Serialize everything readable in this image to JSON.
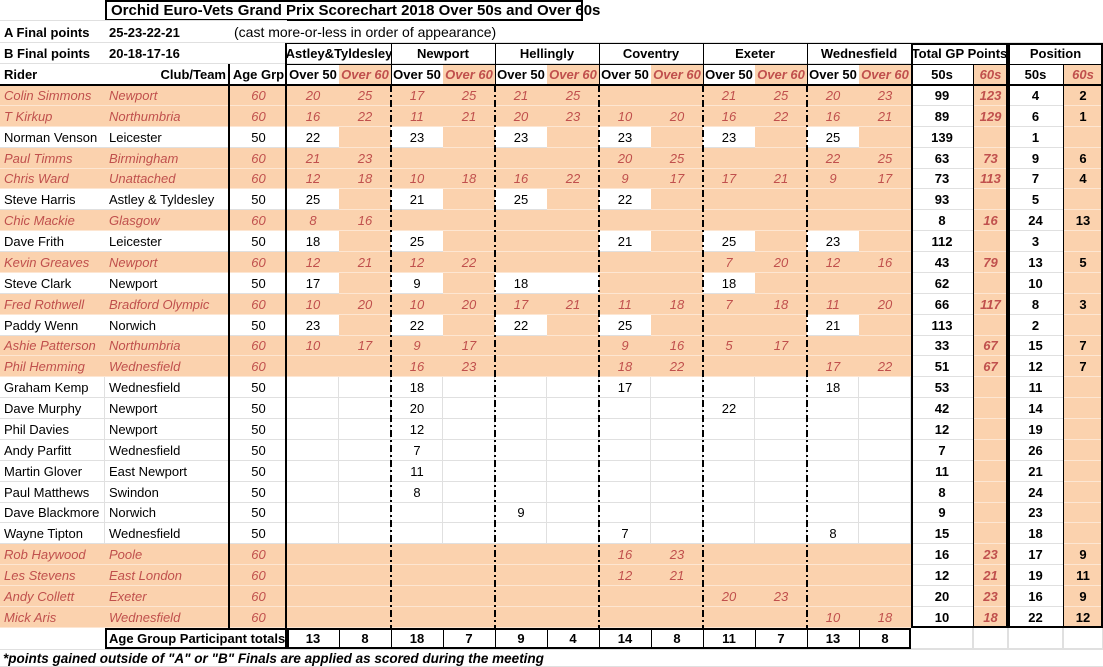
{
  "title": "Orchid Euro-Vets Grand Prix Scorechart 2018 Over 50s and Over 60s",
  "header": {
    "a_final_label": "A Final points",
    "a_final_points": "25-23-22-21",
    "b_final_label": "B Final points",
    "b_final_points": "20-18-17-16",
    "cast_note": "(cast more-or-less in order of appearance)",
    "rider_label": "Rider",
    "club_label": "Club/Team",
    "age_label": "Age Grp",
    "over50_label": "Over 50",
    "over60_label": "Over 60",
    "venues": [
      "Astley&Tyldesley",
      "Newport",
      "Hellingly",
      "Coventry",
      "Exeter",
      "Wednesfield"
    ],
    "total_label": "Total GP Points",
    "position_label": "Position",
    "sub50_label": "50s",
    "sub60_label": "60s"
  },
  "riders": [
    {
      "name": "Colin Simmons",
      "club": "Newport",
      "age": "60",
      "scores": [
        "20",
        "25",
        "17",
        "25",
        "21",
        "25",
        "",
        "",
        "21",
        "25",
        "20",
        "23"
      ],
      "total50": "99",
      "total60": "123",
      "pos50": "4",
      "pos60": "2"
    },
    {
      "name": "T Kirkup",
      "club": "Northumbria",
      "age": "60",
      "scores": [
        "16",
        "22",
        "11",
        "21",
        "20",
        "23",
        "10",
        "20",
        "16",
        "22",
        "16",
        "21"
      ],
      "total50": "89",
      "total60": "129",
      "pos50": "6",
      "pos60": "1"
    },
    {
      "name": "Norman Venson",
      "club": "Leicester",
      "age": "50",
      "scores": [
        "22",
        "",
        "23",
        "",
        "23",
        "",
        "23",
        "",
        "23",
        "",
        "25",
        ""
      ],
      "total50": "139",
      "total60": "",
      "pos50": "1",
      "pos60": ""
    },
    {
      "name": "Paul Timms",
      "club": "Birmingham",
      "age": "60",
      "scores": [
        "21",
        "23",
        "",
        "",
        "",
        "",
        "20",
        "25",
        "",
        "",
        "22",
        "25"
      ],
      "total50": "63",
      "total60": "73",
      "pos50": "9",
      "pos60": "6"
    },
    {
      "name": "Chris Ward",
      "club": "Unattached",
      "age": "60",
      "scores": [
        "12",
        "18",
        "10",
        "18",
        "16",
        "22",
        "9",
        "17",
        "17",
        "21",
        "9",
        "17"
      ],
      "total50": "73",
      "total60": "113",
      "pos50": "7",
      "pos60": "4"
    },
    {
      "name": "Steve Harris",
      "club": "Astley & Tyldesley",
      "age": "50",
      "scores": [
        "25",
        "",
        "21",
        "",
        "25",
        "",
        "22",
        "",
        "",
        "",
        "",
        ""
      ],
      "total50": "93",
      "total60": "",
      "pos50": "5",
      "pos60": ""
    },
    {
      "name": "Chic Mackie",
      "club": "Glasgow",
      "age": "60",
      "scores": [
        "8",
        "16",
        "",
        "",
        "",
        "",
        "",
        "",
        "",
        "",
        "",
        ""
      ],
      "total50": "8",
      "total60": "16",
      "pos50": "24",
      "pos60": "13"
    },
    {
      "name": "Dave Frith",
      "club": "Leicester",
      "age": "50",
      "scores": [
        "18",
        "",
        "25",
        "",
        "",
        "",
        "21",
        "",
        "25",
        "",
        "23",
        ""
      ],
      "total50": "112",
      "total60": "",
      "pos50": "3",
      "pos60": ""
    },
    {
      "name": "Kevin Greaves",
      "club": "Newport",
      "age": "60",
      "scores": [
        "12",
        "21",
        "12",
        "22",
        "",
        "",
        "",
        "",
        "7",
        "20",
        "12",
        "16"
      ],
      "total50": "43",
      "total60": "79",
      "pos50": "13",
      "pos60": "5"
    },
    {
      "name": "Steve Clark",
      "club": "Newport",
      "age": "50",
      "scores": [
        "17",
        "",
        "9",
        "",
        "18",
        "",
        "",
        "",
        "18",
        "",
        "",
        ""
      ],
      "total50": "62",
      "total60": "",
      "pos50": "10",
      "pos60": "",
      "extra_white": [
        5
      ]
    },
    {
      "name": "Fred Rothwell",
      "club": "Bradford Olympic",
      "age": "60",
      "scores": [
        "10",
        "20",
        "10",
        "20",
        "17",
        "21",
        "11",
        "18",
        "7",
        "18",
        "11",
        "20"
      ],
      "total50": "66",
      "total60": "117",
      "pos50": "8",
      "pos60": "3"
    },
    {
      "name": "Paddy Wenn",
      "club": "Norwich",
      "age": "50",
      "scores": [
        "23",
        "",
        "22",
        "",
        "22",
        "",
        "25",
        "",
        "",
        "",
        "21",
        ""
      ],
      "total50": "113",
      "total60": "",
      "pos50": "2",
      "pos60": ""
    },
    {
      "name": "Ashie Patterson",
      "club": "Northumbria",
      "age": "60",
      "scores": [
        "10",
        "17",
        "9",
        "17",
        "",
        "",
        "9",
        "16",
        "5",
        "17",
        "",
        ""
      ],
      "total50": "33",
      "total60": "67",
      "pos50": "15",
      "pos60": "7"
    },
    {
      "name": "Phil Hemming",
      "club": "Wednesfield",
      "age": "60",
      "scores": [
        "",
        "",
        "16",
        "23",
        "",
        "",
        "18",
        "22",
        "",
        "",
        "17",
        "22"
      ],
      "total50": "51",
      "total60": "67",
      "pos50": "12",
      "pos60": "7"
    },
    {
      "name": "Graham Kemp",
      "club": "Wednesfield",
      "age": "50",
      "white_block": true,
      "scores": [
        "",
        "",
        "18",
        "",
        "",
        "",
        "17",
        "",
        "",
        "",
        "18",
        ""
      ],
      "total50": "53",
      "total60": "",
      "pos50": "11",
      "pos60": ""
    },
    {
      "name": "Dave Murphy",
      "club": "Newport",
      "age": "50",
      "white_block": true,
      "scores": [
        "",
        "",
        "20",
        "",
        "",
        "",
        "",
        "",
        "22",
        "",
        "",
        ""
      ],
      "total50": "42",
      "total60": "",
      "pos50": "14",
      "pos60": ""
    },
    {
      "name": "Phil Davies",
      "club": "Newport",
      "age": "50",
      "white_block": true,
      "scores": [
        "",
        "",
        "12",
        "",
        "",
        "",
        "",
        "",
        "",
        "",
        "",
        ""
      ],
      "total50": "12",
      "total60": "",
      "pos50": "19",
      "pos60": ""
    },
    {
      "name": "Andy Parfitt",
      "club": "Wednesfield",
      "age": "50",
      "white_block": true,
      "scores": [
        "",
        "",
        "7",
        "",
        "",
        "",
        "",
        "",
        "",
        "",
        "",
        ""
      ],
      "total50": "7",
      "total60": "",
      "pos50": "26",
      "pos60": ""
    },
    {
      "name": "Martin Glover",
      "club": "East Newport",
      "age": "50",
      "white_block": true,
      "scores": [
        "",
        "",
        "11",
        "",
        "",
        "",
        "",
        "",
        "",
        "",
        "",
        ""
      ],
      "total50": "11",
      "total60": "",
      "pos50": "21",
      "pos60": ""
    },
    {
      "name": "Paul Matthews",
      "club": "Swindon",
      "age": "50",
      "white_block": true,
      "scores": [
        "",
        "",
        "8",
        "",
        "",
        "",
        "",
        "",
        "",
        "",
        "",
        ""
      ],
      "total50": "8",
      "total60": "",
      "pos50": "24",
      "pos60": ""
    },
    {
      "name": "Dave Blackmore",
      "club": "Norwich",
      "age": "50",
      "white_block": true,
      "scores": [
        "",
        "",
        "",
        "",
        "9",
        "",
        "",
        "",
        "",
        "",
        "",
        ""
      ],
      "total50": "9",
      "total60": "",
      "pos50": "23",
      "pos60": ""
    },
    {
      "name": "Wayne Tipton",
      "club": "Wednesfield",
      "age": "50",
      "white_block": true,
      "scores": [
        "",
        "",
        "",
        "",
        "",
        "",
        "7",
        "",
        "",
        "",
        "8",
        ""
      ],
      "total50": "15",
      "total60": "",
      "pos50": "18",
      "pos60": ""
    },
    {
      "name": "Rob Haywood",
      "club": "Poole",
      "age": "60",
      "scores": [
        "",
        "",
        "",
        "",
        "",
        "",
        "16",
        "23",
        "",
        "",
        "",
        ""
      ],
      "total50": "16",
      "total60": "23",
      "pos50": "17",
      "pos60": "9"
    },
    {
      "name": "Les Stevens",
      "club": "East London",
      "age": "60",
      "scores": [
        "",
        "",
        "",
        "",
        "",
        "",
        "12",
        "21",
        "",
        "",
        "",
        ""
      ],
      "total50": "12",
      "total60": "21",
      "pos50": "19",
      "pos60": "11"
    },
    {
      "name": "Andy Collett",
      "club": "Exeter",
      "age": "60",
      "scores": [
        "",
        "",
        "",
        "",
        "",
        "",
        "",
        "",
        "20",
        "23",
        "",
        ""
      ],
      "total50": "20",
      "total60": "23",
      "pos50": "16",
      "pos60": "9"
    },
    {
      "name": "Mick Aris",
      "club": "Wednesfield",
      "age": "60",
      "scores": [
        "",
        "",
        "",
        "",
        "",
        "",
        "",
        "",
        "",
        "",
        "10",
        "18"
      ],
      "total50": "10",
      "total60": "18",
      "pos50": "22",
      "pos60": "12"
    }
  ],
  "totals_row": {
    "label": "Age Group Participant totals",
    "values": [
      "13",
      "8",
      "18",
      "7",
      "9",
      "4",
      "14",
      "8",
      "11",
      "7",
      "13",
      "8"
    ]
  },
  "footer_note": "*points gained outside of \"A\" or \"B\" Finals are applied as scored during the meeting",
  "colors": {
    "orange_fill": "#FBD2AE",
    "red_text": "#C0504D"
  }
}
